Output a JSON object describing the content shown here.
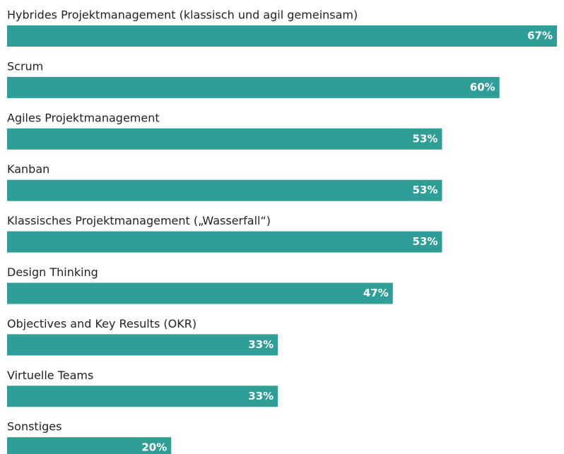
{
  "chart_data": {
    "type": "barh",
    "categories": [
      "Hybrides Projektmanagement (klassisch und agil gemeinsam)",
      "Scrum",
      "Agiles Projektmanagement",
      "Kanban",
      "Klassisches Projektmanagement („Wasserfall“)",
      "Design Thinking",
      "Objectives and Key Results (OKR)",
      "Virtuelle Teams",
      "Sonstiges"
    ],
    "values": [
      67,
      60,
      53,
      53,
      53,
      47,
      33,
      33,
      20
    ],
    "value_labels": [
      "67%",
      "60%",
      "53%",
      "53%",
      "53%",
      "47%",
      "33%",
      "33%",
      "20%"
    ],
    "color": "#2e9e97"
  }
}
